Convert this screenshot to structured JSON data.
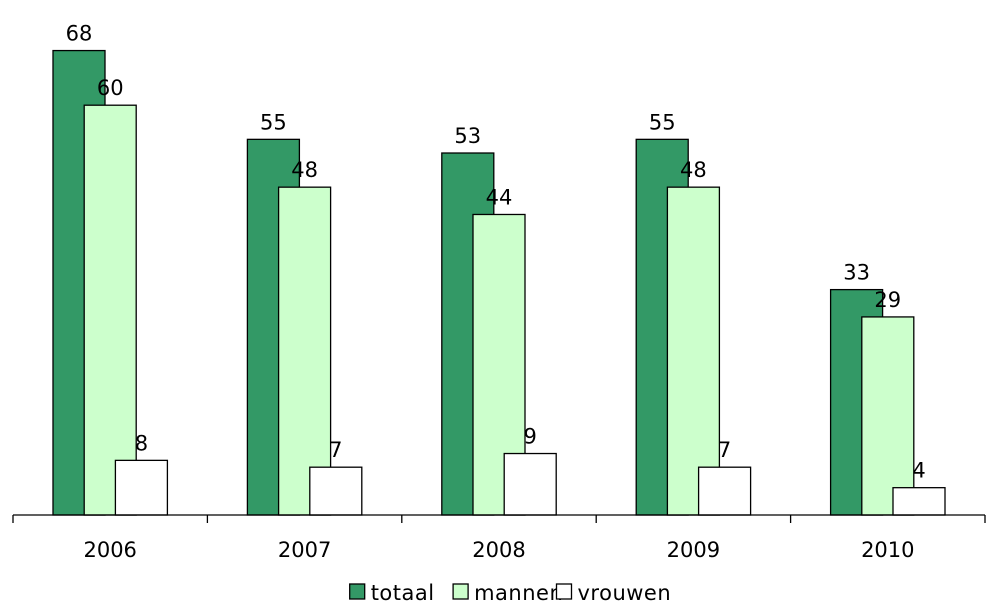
{
  "chart_data": {
    "type": "bar",
    "categories": [
      "2006",
      "2007",
      "2008",
      "2009",
      "2010"
    ],
    "series": [
      {
        "name": "totaal",
        "values": [
          68,
          55,
          53,
          55,
          33
        ],
        "color": "#339966"
      },
      {
        "name": "mannen",
        "values": [
          60,
          48,
          44,
          48,
          29
        ],
        "color": "#ccffcc"
      },
      {
        "name": "vrouwen",
        "values": [
          8,
          7,
          9,
          7,
          4
        ],
        "color": "#ffffff"
      }
    ],
    "title": "",
    "xlabel": "",
    "ylabel": "",
    "ylim": [
      0,
      75
    ],
    "grid": false,
    "legend_position": "bottom"
  }
}
